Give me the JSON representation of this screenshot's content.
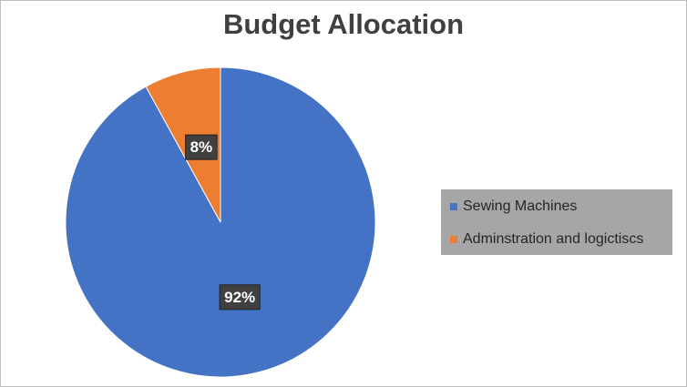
{
  "chart_data": {
    "type": "pie",
    "title": "Budget Allocation",
    "categories": [
      "Sewing Machines",
      "Adminstration and logictiscs"
    ],
    "values": [
      92,
      8
    ],
    "value_labels": [
      "92%",
      "8%"
    ],
    "colors": [
      "#4472c4",
      "#ed7d31"
    ],
    "legend": "right"
  }
}
